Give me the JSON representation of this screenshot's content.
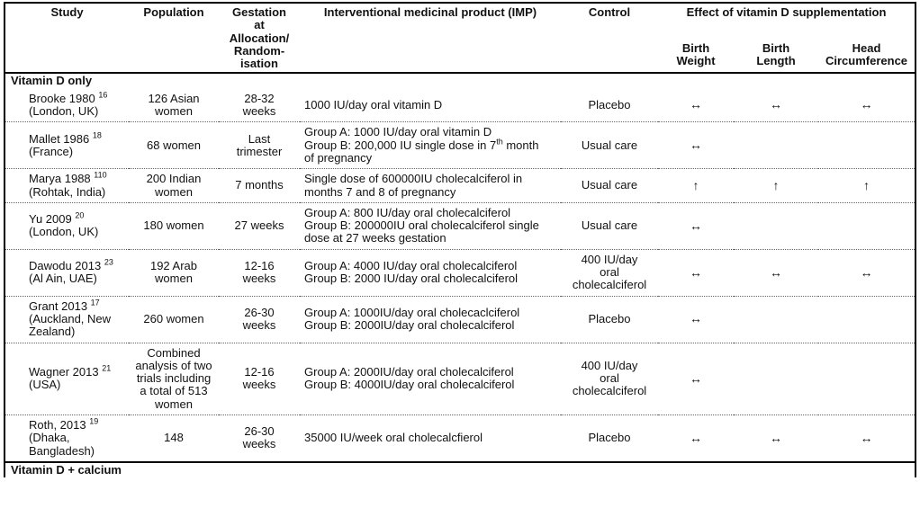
{
  "page": {
    "background": "#ffffff",
    "text_color": "#111111",
    "border_color": "#000000"
  },
  "table": {
    "columns": [
      {
        "label": "Study"
      },
      {
        "label": "Population"
      },
      {
        "label": "Gestation\nat\nAllocation/\nRandom-\nisation"
      },
      {
        "label": "Interventional medicinal product (IMP)"
      },
      {
        "label": "Control"
      }
    ],
    "effect_group": {
      "label": "Effect of vitamin D supplementation",
      "sub_columns": [
        "Birth\nWeight",
        "Birth\nLength",
        "Head\nCircumference"
      ]
    },
    "legend": {
      "no_change_symbol": "↔",
      "increase_symbol": "↑"
    },
    "sections": [
      {
        "label": "Vitamin D only",
        "rows": [
          {
            "study": "Brooke 1980",
            "ref": "16",
            "location": "(London, UK)",
            "population": "126 Asian women",
            "gestation": "28-32\nweeks",
            "imp": [
              "1000 IU/day oral vitamin D"
            ],
            "control": "Placebo",
            "effects": [
              "↔",
              "↔",
              "↔"
            ]
          },
          {
            "study": "Mallet 1986",
            "ref": "18",
            "location": "(France)",
            "population": "68 women",
            "gestation": "Last\ntrimester",
            "imp": [
              "Group A: 1000 IU/day oral vitamin D",
              "Group B: 200,000 IU single dose in 7th month of pregnancy"
            ],
            "control": "Usual care",
            "effects": [
              "↔",
              "",
              ""
            ]
          },
          {
            "study": "Marya 1988",
            "ref": "110",
            "location": "(Rohtak, India)",
            "population": "200 Indian women",
            "gestation": "7 months",
            "imp": [
              "Single dose of 600000IU cholecalciferol in months 7 and 8 of pregnancy"
            ],
            "control": "Usual care",
            "effects": [
              "↑",
              "↑",
              "↑"
            ]
          },
          {
            "study": "Yu 2009",
            "ref": "20",
            "location": "(London, UK)",
            "population": "180 women",
            "gestation": "27 weeks",
            "imp": [
              "Group A: 800 IU/day oral cholecalciferol",
              "Group B: 200000IU oral cholecalciferol single dose at 27 weeks gestation"
            ],
            "control": "Usual care",
            "effects": [
              "↔",
              "",
              ""
            ]
          },
          {
            "study": "Dawodu 2013",
            "ref": "23",
            "location": "(Al Ain, UAE)",
            "population": "192 Arab women",
            "gestation": "12-16\nweeks",
            "imp": [
              "Group A: 4000 IU/day oral cholecalciferol",
              "Group B: 2000 IU/day oral cholecalciferol"
            ],
            "control": "400 IU/day\noral\ncholecalciferol",
            "effects": [
              "↔",
              "↔",
              "↔"
            ]
          },
          {
            "study": "Grant 2013",
            "ref": "17",
            "location": "(Auckland, New Zealand)",
            "population": "260 women",
            "gestation": "26-30\nweeks",
            "imp": [
              "Group A: 1000IU/day oral cholecaclciferol",
              "Group B: 2000IU/day oral cholecalciferol"
            ],
            "control": "Placebo",
            "effects": [
              "↔",
              "",
              ""
            ]
          },
          {
            "study": "Wagner 2013",
            "ref": "21",
            "location": "(USA)",
            "population": "Combined analysis of two trials including a total of 513 women",
            "gestation": "12-16\nweeks",
            "imp": [
              "Group A: 2000IU/day oral cholecalciferol",
              "Group B: 4000IU/day oral cholecalciferol"
            ],
            "control": "400 IU/day\noral\ncholecalciferol",
            "effects": [
              "↔",
              "",
              ""
            ]
          },
          {
            "study": "Roth, 2013",
            "ref": "19",
            "location": "(Dhaka,\nBangladesh)",
            "population": "148",
            "gestation": "26-30\nweeks",
            "imp": [
              "35000 IU/week oral cholecalcfierol"
            ],
            "control": "Placebo",
            "effects": [
              "↔",
              "↔",
              "↔"
            ]
          }
        ]
      },
      {
        "label": "Vitamin D + calcium",
        "rows": []
      }
    ]
  }
}
